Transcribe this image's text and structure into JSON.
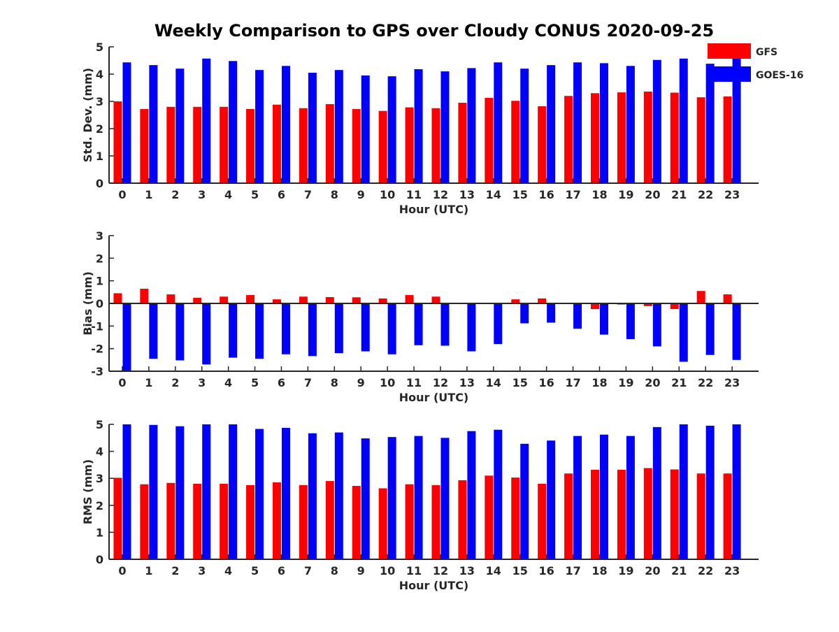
{
  "title": "Weekly Comparison to GPS over Cloudy CONUS 2020-09-25",
  "colors": {
    "GFS": "#ff0000",
    "GOES-16": "#0000ff",
    "axis": "#262626"
  },
  "legend": {
    "placement": "top-right",
    "entries": [
      "GFS",
      "GOES-16"
    ]
  },
  "chart_data": [
    {
      "type": "bar",
      "xlabel": "Hour (UTC)",
      "ylabel": "Std. Dev. (mm)",
      "ylim": [
        0,
        5
      ],
      "yticks": [
        "0",
        "1",
        "2",
        "3",
        "4",
        "5"
      ],
      "categories": [
        "0",
        "1",
        "2",
        "3",
        "4",
        "5",
        "6",
        "7",
        "8",
        "9",
        "10",
        "11",
        "12",
        "13",
        "14",
        "15",
        "16",
        "17",
        "18",
        "19",
        "20",
        "21",
        "22",
        "23"
      ],
      "series": [
        {
          "name": "GFS",
          "values": [
            3.0,
            2.72,
            2.8,
            2.8,
            2.8,
            2.72,
            2.88,
            2.75,
            2.9,
            2.72,
            2.65,
            2.78,
            2.75,
            2.95,
            3.13,
            3.02,
            2.82,
            3.2,
            3.3,
            3.33,
            3.36,
            3.32,
            3.15,
            3.18
          ]
        },
        {
          "name": "GOES-16",
          "values": [
            4.43,
            4.33,
            4.2,
            4.57,
            4.48,
            4.15,
            4.3,
            4.05,
            4.15,
            3.95,
            3.92,
            4.18,
            4.1,
            4.22,
            4.43,
            4.2,
            4.33,
            4.43,
            4.4,
            4.3,
            4.52,
            4.57,
            4.38,
            4.65
          ]
        }
      ]
    },
    {
      "type": "bar",
      "xlabel": "Hour (UTC)",
      "ylabel": "Bias (mm)",
      "ylim": [
        -3,
        3
      ],
      "yticks": [
        "-3",
        "-2",
        "-1",
        "0",
        "1",
        "2",
        "3"
      ],
      "categories": [
        "0",
        "1",
        "2",
        "3",
        "4",
        "5",
        "6",
        "7",
        "8",
        "9",
        "10",
        "11",
        "12",
        "13",
        "14",
        "15",
        "16",
        "17",
        "18",
        "19",
        "20",
        "21",
        "22",
        "23"
      ],
      "series": [
        {
          "name": "GFS",
          "values": [
            0.45,
            0.65,
            0.4,
            0.25,
            0.3,
            0.37,
            0.18,
            0.3,
            0.28,
            0.27,
            0.22,
            0.37,
            0.3,
            0.0,
            0.0,
            0.18,
            0.22,
            0.0,
            -0.25,
            -0.05,
            -0.12,
            -0.25,
            0.55,
            0.4
          ]
        },
        {
          "name": "GOES-16",
          "values": [
            -3.0,
            -2.45,
            -2.52,
            -2.7,
            -2.4,
            -2.45,
            -2.25,
            -2.33,
            -2.2,
            -2.12,
            -2.25,
            -1.85,
            -1.87,
            -2.12,
            -1.8,
            -0.88,
            -0.85,
            -1.12,
            -1.38,
            -1.58,
            -1.9,
            -2.58,
            -2.28,
            -2.5
          ]
        }
      ]
    },
    {
      "type": "bar",
      "xlabel": "Hour (UTC)",
      "ylabel": "RMS (mm)",
      "ylim": [
        0,
        5
      ],
      "yticks": [
        "0",
        "1",
        "2",
        "3",
        "4",
        "5"
      ],
      "categories": [
        "0",
        "1",
        "2",
        "3",
        "4",
        "5",
        "6",
        "7",
        "8",
        "9",
        "10",
        "11",
        "12",
        "13",
        "14",
        "15",
        "16",
        "17",
        "18",
        "19",
        "20",
        "21",
        "22",
        "23"
      ],
      "series": [
        {
          "name": "GFS",
          "values": [
            3.02,
            2.78,
            2.83,
            2.8,
            2.8,
            2.75,
            2.85,
            2.75,
            2.9,
            2.72,
            2.63,
            2.78,
            2.75,
            2.93,
            3.1,
            3.03,
            2.8,
            3.18,
            3.32,
            3.32,
            3.38,
            3.33,
            3.18,
            3.18
          ]
        },
        {
          "name": "GOES-16",
          "values": [
            5.0,
            4.98,
            4.93,
            5.0,
            5.0,
            4.83,
            4.87,
            4.67,
            4.7,
            4.48,
            4.53,
            4.57,
            4.5,
            4.75,
            4.8,
            4.28,
            4.4,
            4.57,
            4.62,
            4.57,
            4.9,
            5.0,
            4.95,
            5.0
          ]
        }
      ]
    }
  ]
}
